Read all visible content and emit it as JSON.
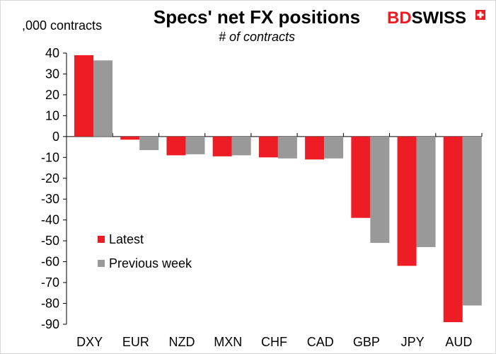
{
  "chart_data": {
    "type": "bar",
    "title": "Specs' net FX positions",
    "subtitle": "# of contracts",
    "unit_label": ",000 contracts",
    "categories": [
      "DXY",
      "EUR",
      "NZD",
      "MXN",
      "CHF",
      "CAD",
      "GBP",
      "JPY",
      "AUD"
    ],
    "series": [
      {
        "name": "Latest",
        "color": "#ee1c25",
        "values": [
          39,
          -1.5,
          -9,
          -9.5,
          -10,
          -11,
          -39,
          -62,
          -89
        ]
      },
      {
        "name": "Previous week",
        "color": "#999999",
        "values": [
          36.5,
          -6.5,
          -8.5,
          -9,
          -10.5,
          -10.5,
          -51,
          -53,
          -81
        ]
      }
    ],
    "ylim": [
      -90,
      40
    ],
    "yticks": [
      40,
      30,
      20,
      10,
      0,
      -10,
      -20,
      -30,
      -40,
      -50,
      -60,
      -70,
      -80,
      -90
    ],
    "grid": false,
    "legend_position": "lower-left"
  },
  "brand": {
    "part1": "BD",
    "part2": "SWISS",
    "color1": "#ee1c25",
    "color2": "#000000"
  }
}
